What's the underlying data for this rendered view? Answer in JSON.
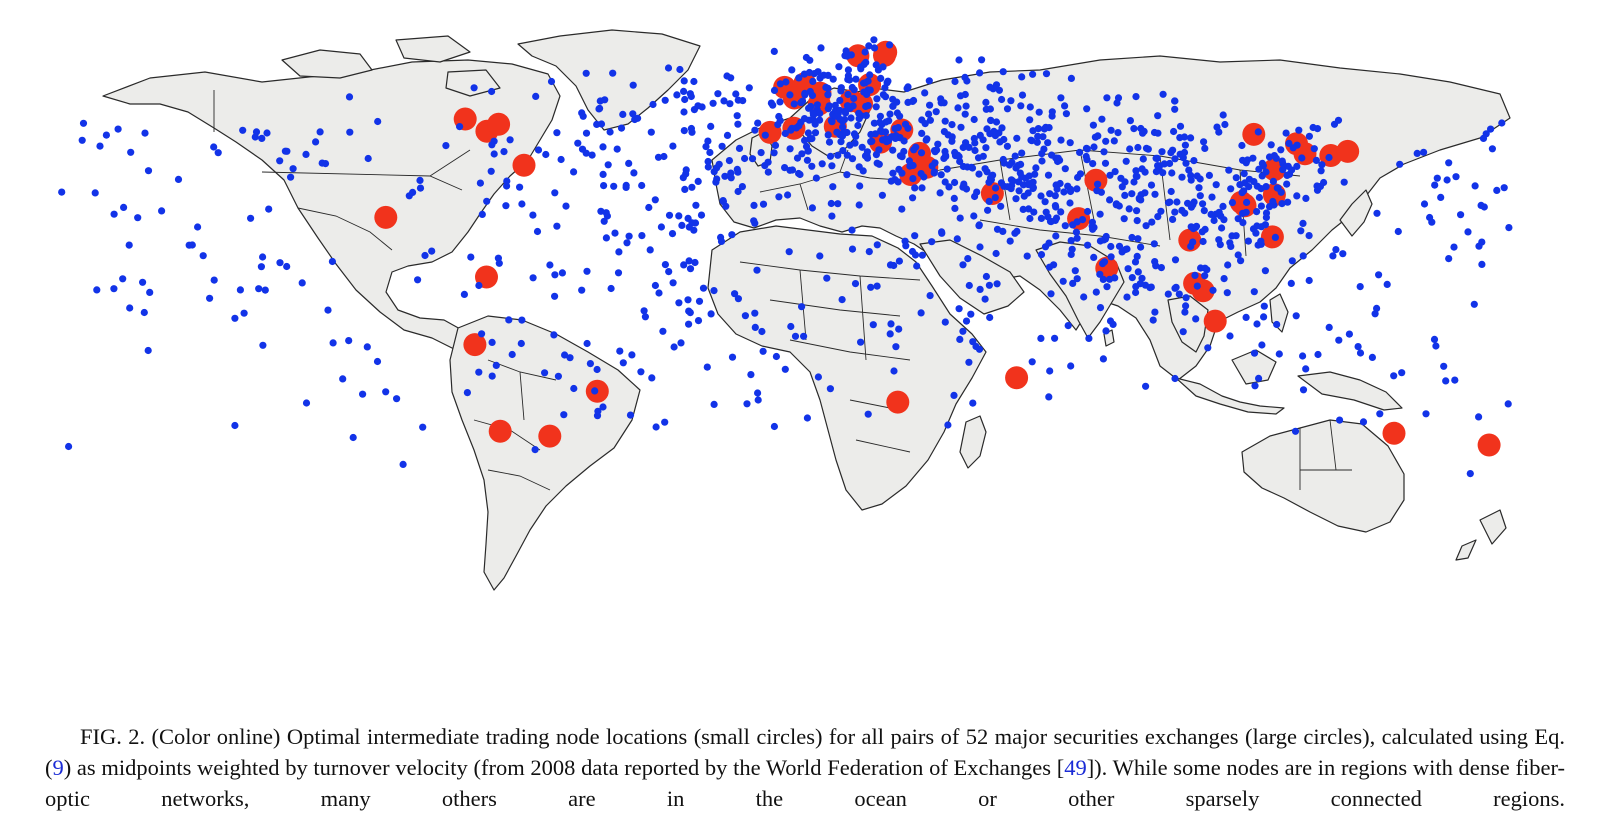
{
  "figure": {
    "caption": {
      "lead": "FIG. 2.  (Color online) Optimal intermediate trading node locations (small circles) for all pairs of 52 major securities exchanges (large circles), calculated using Eq. (",
      "eq_ref": "9",
      "middle": ") as midpoints weighted by turnover velocity (from 2008 data reported by the World Federation of Exchanges [",
      "cite_ref": "49",
      "tail": "]). While some nodes are in regions with dense fiber-optic networks, many others are in the ocean or other sparsely connected regions."
    },
    "colors": {
      "land": "#ececea",
      "border": "#2a2a2a",
      "node": "#1233e8",
      "exchange": "#f1331c",
      "caption_ref": "#1a2bd6"
    },
    "exchanges_lonlat": [
      [
        -74.0,
        40.7
      ],
      [
        -71.1,
        42.4
      ],
      [
        -79.4,
        43.7
      ],
      [
        -64.8,
        32.3
      ],
      [
        -99.1,
        19.4
      ],
      [
        -74.1,
        4.7
      ],
      [
        -77.0,
        -12.0
      ],
      [
        -70.7,
        -33.4
      ],
      [
        -58.4,
        -34.6
      ],
      [
        -46.6,
        -23.5
      ],
      [
        -3.7,
        40.4
      ],
      [
        2.2,
        41.4
      ],
      [
        -0.1,
        51.5
      ],
      [
        4.9,
        52.4
      ],
      [
        2.3,
        48.9
      ],
      [
        8.7,
        50.1
      ],
      [
        8.5,
        47.4
      ],
      [
        12.5,
        41.9
      ],
      [
        16.4,
        48.2
      ],
      [
        21.0,
        52.2
      ],
      [
        18.1,
        59.3
      ],
      [
        25.0,
        60.2
      ],
      [
        24.7,
        59.4
      ],
      [
        19.0,
        47.5
      ],
      [
        29.0,
        41.0
      ],
      [
        23.7,
        38.0
      ],
      [
        33.4,
        35.2
      ],
      [
        35.2,
        31.8
      ],
      [
        31.2,
        30.0
      ],
      [
        51.5,
        25.3
      ],
      [
        72.9,
        19.1
      ],
      [
        77.2,
        28.6
      ],
      [
        79.9,
        6.9
      ],
      [
        57.5,
        -20.2
      ],
      [
        28.0,
        -26.2
      ],
      [
        100.5,
        13.8
      ],
      [
        101.7,
        3.1
      ],
      [
        103.8,
        1.3
      ],
      [
        106.8,
        -6.2
      ],
      [
        121.0,
        14.6
      ],
      [
        114.2,
        22.3
      ],
      [
        113.3,
        23.1
      ],
      [
        114.1,
        22.5
      ],
      [
        121.5,
        31.2
      ],
      [
        116.4,
        39.9
      ],
      [
        127.0,
        37.6
      ],
      [
        129.1,
        35.1
      ],
      [
        121.5,
        25.0
      ],
      [
        135.5,
        34.7
      ],
      [
        139.7,
        35.7
      ],
      [
        151.2,
        -33.9
      ],
      [
        174.8,
        -36.8
      ]
    ],
    "node_count": 1326
  }
}
